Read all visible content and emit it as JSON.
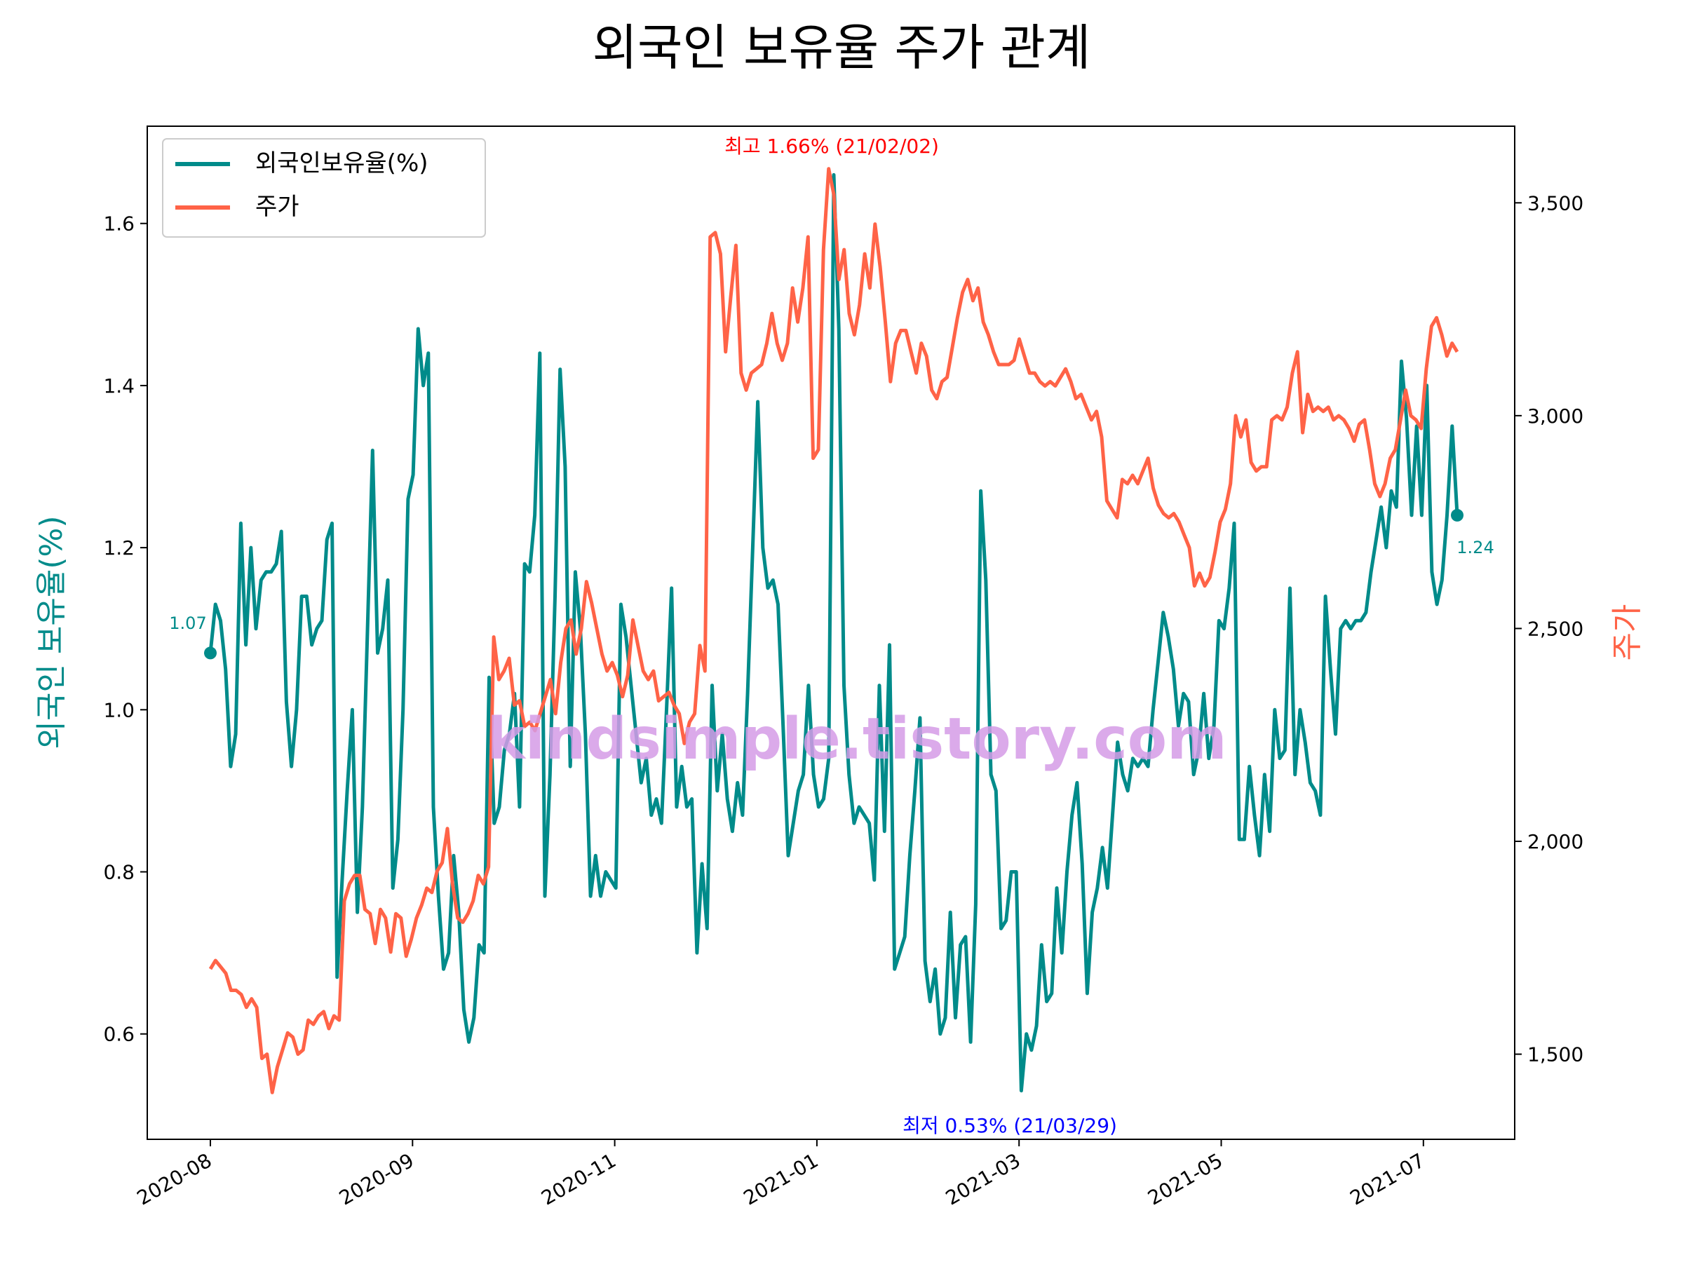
{
  "chart_data": {
    "type": "line",
    "title": "외국인 보유율 주가 관계",
    "xlabel": "",
    "ylabel_left": "외국인 보유율(%)",
    "ylabel_right": "주가",
    "x_ticks": [
      "2020-08",
      "2020-09",
      "2020-11",
      "2021-01",
      "2021-03",
      "2021-05",
      "2021-07"
    ],
    "y_left_ticks": [
      "0.6",
      "0.8",
      "1.0",
      "1.2",
      "1.4",
      "1.6"
    ],
    "y_right_ticks": [
      "1,500",
      "2,000",
      "2,500",
      "3,000",
      "3,500"
    ],
    "ylim_left": [
      0.47,
      1.72
    ],
    "ylim_right": [
      1300,
      3680
    ],
    "legend_position": "top-left",
    "grid": false,
    "colors": {
      "series_1": "#008b8a",
      "series_2": "#ff6347",
      "max": "#ff0000",
      "min": "#0000ff"
    },
    "series": [
      {
        "name": "외국인보유율(%)",
        "axis": "left",
        "values": [
          1.07,
          1.13,
          1.11,
          1.05,
          0.93,
          0.97,
          1.23,
          1.08,
          1.2,
          1.1,
          1.16,
          1.17,
          1.17,
          1.18,
          1.22,
          1.01,
          0.93,
          1.0,
          1.14,
          1.14,
          1.08,
          1.1,
          1.11,
          1.21,
          1.23,
          0.67,
          0.79,
          0.9,
          1.0,
          0.75,
          0.88,
          1.1,
          1.32,
          1.07,
          1.1,
          1.16,
          0.78,
          0.84,
          1.0,
          1.26,
          1.29,
          1.47,
          1.4,
          1.44,
          0.88,
          0.77,
          0.68,
          0.7,
          0.82,
          0.75,
          0.63,
          0.59,
          0.62,
          0.71,
          0.7,
          1.04,
          0.86,
          0.88,
          0.95,
          0.97,
          1.02,
          0.88,
          1.18,
          1.17,
          1.24,
          1.44,
          0.77,
          0.92,
          1.14,
          1.42,
          1.3,
          0.93,
          1.17,
          1.1,
          0.97,
          0.77,
          0.82,
          0.77,
          0.8,
          0.79,
          0.78,
          1.13,
          1.09,
          1.03,
          0.97,
          0.91,
          0.94,
          0.87,
          0.89,
          0.86,
          1.0,
          1.15,
          0.88,
          0.93,
          0.88,
          0.89,
          0.7,
          0.81,
          0.73,
          1.03,
          0.9,
          0.97,
          0.89,
          0.85,
          0.91,
          0.87,
          1.02,
          1.2,
          1.38,
          1.2,
          1.15,
          1.16,
          1.13,
          0.98,
          0.82,
          0.86,
          0.9,
          0.92,
          1.03,
          0.92,
          0.88,
          0.89,
          0.94,
          1.66,
          1.47,
          1.03,
          0.92,
          0.86,
          0.88,
          0.87,
          0.86,
          0.79,
          1.03,
          0.85,
          1.08,
          0.68,
          0.7,
          0.72,
          0.82,
          0.9,
          0.99,
          0.69,
          0.64,
          0.68,
          0.6,
          0.62,
          0.75,
          0.62,
          0.71,
          0.72,
          0.59,
          0.76,
          1.27,
          1.16,
          0.92,
          0.9,
          0.73,
          0.74,
          0.8,
          0.8,
          0.53,
          0.6,
          0.58,
          0.61,
          0.71,
          0.64,
          0.65,
          0.78,
          0.7,
          0.8,
          0.87,
          0.91,
          0.81,
          0.65,
          0.75,
          0.78,
          0.83,
          0.78,
          0.87,
          0.96,
          0.92,
          0.9,
          0.94,
          0.93,
          0.94,
          0.93,
          1.0,
          1.06,
          1.12,
          1.09,
          1.05,
          0.98,
          1.02,
          1.01,
          0.92,
          0.95,
          1.02,
          0.94,
          0.98,
          1.11,
          1.1,
          1.15,
          1.23,
          0.84,
          0.84,
          0.93,
          0.87,
          0.82,
          0.92,
          0.85,
          1.0,
          0.94,
          0.95,
          1.15,
          0.92,
          1.0,
          0.96,
          0.91,
          0.9,
          0.87,
          1.14,
          1.05,
          0.97,
          1.1,
          1.11,
          1.1,
          1.11,
          1.11,
          1.12,
          1.17,
          1.21,
          1.25,
          1.2,
          1.27,
          1.25,
          1.43,
          1.36,
          1.24,
          1.35,
          1.24,
          1.4,
          1.17,
          1.13,
          1.16,
          1.24,
          1.35,
          1.24
        ]
      },
      {
        "name": "주가",
        "axis": "right",
        "values": [
          1700,
          1720,
          1705,
          1690,
          1650,
          1650,
          1640,
          1610,
          1630,
          1610,
          1490,
          1500,
          1410,
          1470,
          1510,
          1550,
          1540,
          1500,
          1510,
          1580,
          1570,
          1590,
          1600,
          1560,
          1590,
          1580,
          1860,
          1900,
          1920,
          1920,
          1840,
          1830,
          1760,
          1840,
          1820,
          1740,
          1830,
          1820,
          1730,
          1770,
          1820,
          1850,
          1890,
          1880,
          1930,
          1950,
          2030,
          1900,
          1820,
          1810,
          1830,
          1860,
          1920,
          1900,
          1940,
          2480,
          2380,
          2400,
          2430,
          2320,
          2330,
          2270,
          2280,
          2260,
          2300,
          2340,
          2380,
          2300,
          2420,
          2500,
          2520,
          2440,
          2500,
          2610,
          2560,
          2500,
          2440,
          2400,
          2420,
          2390,
          2340,
          2390,
          2520,
          2460,
          2400,
          2380,
          2400,
          2330,
          2340,
          2350,
          2320,
          2300,
          2230,
          2280,
          2300,
          2460,
          2400,
          3420,
          3430,
          3380,
          3150,
          3280,
          3400,
          3100,
          3060,
          3100,
          3110,
          3120,
          3170,
          3240,
          3170,
          3130,
          3170,
          3300,
          3220,
          3300,
          3420,
          2900,
          2920,
          3390,
          3580,
          3520,
          3320,
          3390,
          3240,
          3190,
          3260,
          3380,
          3300,
          3450,
          3350,
          3220,
          3080,
          3170,
          3200,
          3200,
          3150,
          3100,
          3170,
          3140,
          3060,
          3040,
          3080,
          3090,
          3160,
          3230,
          3290,
          3320,
          3270,
          3300,
          3220,
          3190,
          3150,
          3120,
          3120,
          3120,
          3130,
          3180,
          3140,
          3100,
          3100,
          3080,
          3070,
          3080,
          3070,
          3090,
          3110,
          3080,
          3040,
          3050,
          3020,
          2990,
          3010,
          2950,
          2800,
          2780,
          2760,
          2850,
          2840,
          2860,
          2840,
          2870,
          2900,
          2830,
          2790,
          2770,
          2760,
          2770,
          2750,
          2720,
          2690,
          2600,
          2630,
          2600,
          2620,
          2680,
          2750,
          2780,
          2840,
          3000,
          2950,
          2990,
          2890,
          2870,
          2880,
          2880,
          2990,
          3000,
          2990,
          3020,
          3100,
          3150,
          2960,
          3050,
          3010,
          3020,
          3010,
          3020,
          2990,
          3000,
          2990,
          2970,
          2940,
          2980,
          2990,
          2920,
          2840,
          2810,
          2840,
          2900,
          2920,
          2990,
          3060,
          3000,
          2990,
          2970,
          3110,
          3210,
          3230,
          3190,
          3140,
          3170,
          3150
        ]
      }
    ],
    "annotations": {
      "max_label": "최고 1.66% (21/02/02)",
      "min_label": "최저 0.53% (21/03/29)",
      "start_value": "1.07",
      "end_value": "1.24"
    },
    "watermark": "kindsimple.tistory.com"
  }
}
